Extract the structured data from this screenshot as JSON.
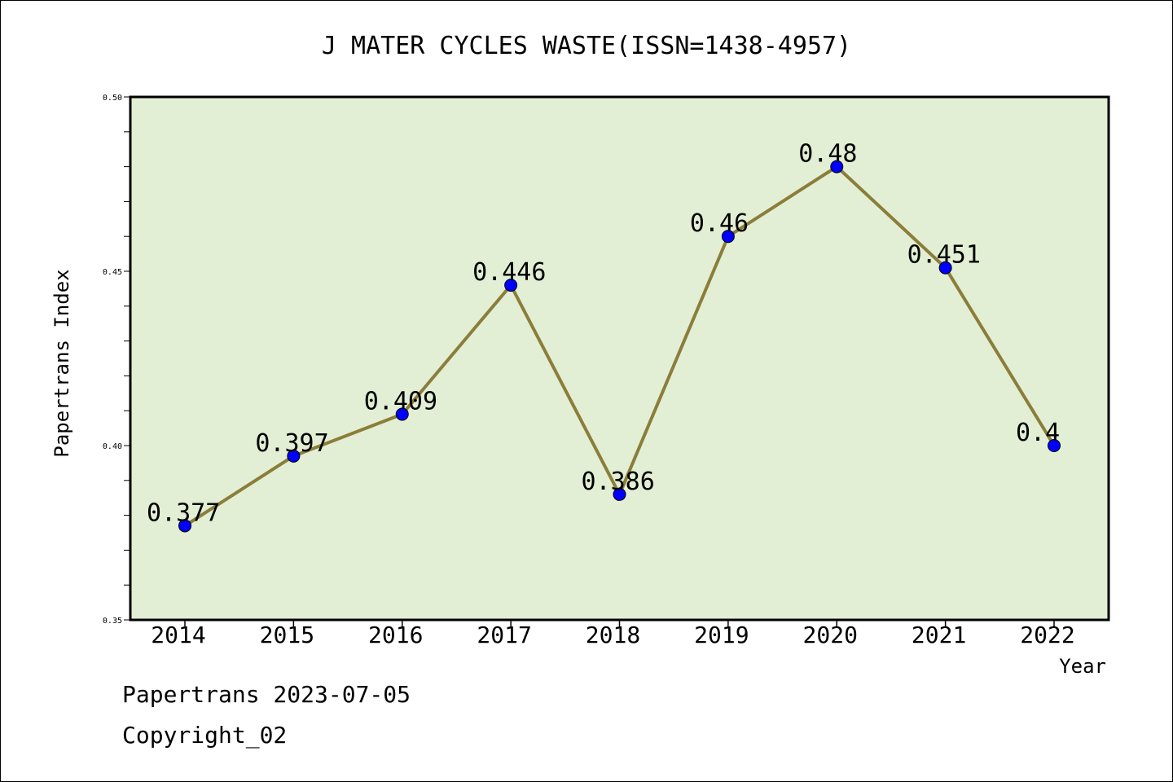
{
  "chart_data": {
    "type": "line",
    "title": "J MATER CYCLES WASTE(ISSN=1438-4957)",
    "xlabel": "Year",
    "ylabel": "Papertrans Index",
    "categories": [
      "2014",
      "2015",
      "2016",
      "2017",
      "2018",
      "2019",
      "2020",
      "2021",
      "2022"
    ],
    "series": [
      {
        "values": [
          0.377,
          0.397,
          0.409,
          0.446,
          0.386,
          0.46,
          0.48,
          0.451,
          0.4
        ]
      }
    ],
    "data_labels": [
      "0.377",
      "0.397",
      "0.409",
      "0.446",
      "0.386",
      "0.46",
      "0.48",
      "0.451",
      "0.4"
    ],
    "ylim": [
      0.35,
      0.5
    ],
    "y_major_ticks": [
      "0.35",
      "0.40",
      "0.45",
      "0.50"
    ],
    "y_minor_step": 0.01,
    "grid": false,
    "legend": "none",
    "colors": {
      "plot_background": "#e2efd4",
      "line": "#8b7d3a",
      "marker": "#0000ff"
    }
  },
  "footer": {
    "date_text": "Papertrans 2023-07-05",
    "copyright_text": "Copyright_02"
  }
}
